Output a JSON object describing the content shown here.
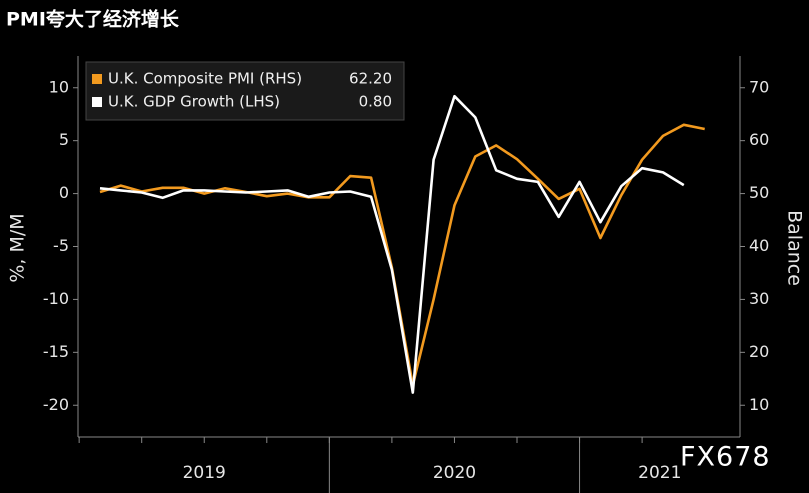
{
  "chart_data": {
    "type": "line",
    "title": "PMI夸大了经济增长",
    "ylabel": "%, M/M",
    "y2label": "Balance",
    "watermark": "FX678",
    "categories": [
      null,
      null,
      null,
      null,
      null,
      null,
      null,
      null,
      null,
      null,
      null,
      null,
      null,
      null,
      null,
      null,
      null,
      null,
      null,
      null,
      null,
      null,
      null,
      null,
      null,
      null,
      null,
      null,
      null,
      null
    ],
    "year_labels": [
      "2019",
      "2020",
      "2021"
    ],
    "series": [
      {
        "name": "U.K. Composite PMI (RHS)",
        "legend_value": "62.20",
        "color": "#f29a1f",
        "axis": "y2",
        "values": [
          50.3,
          51.5,
          50.4,
          51.1,
          51.1,
          50.0,
          51.0,
          50.3,
          49.5,
          50.0,
          49.3,
          49.3,
          53.3,
          53.0,
          36.0,
          13.8,
          30.0,
          47.8,
          57.0,
          59.1,
          56.5,
          52.8,
          49.0,
          50.9,
          41.6,
          49.7,
          56.4,
          60.9,
          63.0,
          62.2
        ]
      },
      {
        "name": "U.K. GDP Growth (LHS)",
        "legend_value": "0.80",
        "color": "#ffffff",
        "values": [
          0.5,
          0.3,
          0.1,
          -0.4,
          0.3,
          0.3,
          0.2,
          0.1,
          0.2,
          0.3,
          -0.3,
          0.1,
          0.2,
          -0.3,
          -7.2,
          -18.8,
          3.2,
          9.2,
          7.2,
          2.2,
          1.4,
          1.1,
          -2.2,
          1.1,
          -2.7,
          0.7,
          2.4,
          2.0,
          0.8,
          null
        ]
      }
    ],
    "ylim": [
      -23,
      13
    ],
    "yticks": [
      -20,
      -15,
      -10,
      -5,
      0,
      5,
      10
    ],
    "y2lim": [
      4,
      76
    ],
    "y2ticks": [
      10,
      20,
      30,
      40,
      50,
      60,
      70
    ],
    "grid": false
  }
}
